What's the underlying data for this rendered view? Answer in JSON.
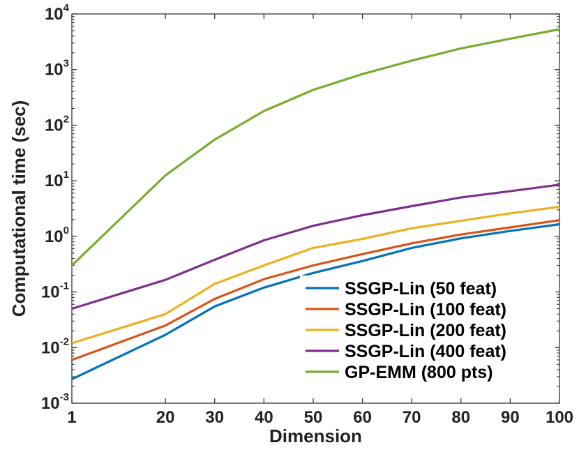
{
  "chart_data": {
    "type": "line",
    "title": "",
    "xlabel": "Dimension",
    "ylabel": "Computational time (sec)",
    "x": [
      1,
      20,
      30,
      40,
      50,
      60,
      70,
      80,
      90,
      100
    ],
    "xlim": [
      1,
      100
    ],
    "xticks": [
      "1",
      "20",
      "30",
      "40",
      "50",
      "60",
      "70",
      "80",
      "90",
      "100"
    ],
    "yscale": "log",
    "ylim": [
      0.001,
      10000
    ],
    "yticks": [
      {
        "base": "10",
        "exp": "-3"
      },
      {
        "base": "10",
        "exp": "-2"
      },
      {
        "base": "10",
        "exp": "-1"
      },
      {
        "base": "10",
        "exp": "0"
      },
      {
        "base": "10",
        "exp": "1"
      },
      {
        "base": "10",
        "exp": "2"
      },
      {
        "base": "10",
        "exp": "3"
      },
      {
        "base": "10",
        "exp": "4"
      }
    ],
    "grid": false,
    "legend_position": "bottom-right",
    "series": [
      {
        "name": "SSGP-Lin (50 feat)",
        "color": "#0072BD",
        "values": [
          0.0027,
          0.017,
          0.055,
          0.12,
          0.22,
          0.36,
          0.62,
          0.92,
          1.25,
          1.65
        ]
      },
      {
        "name": "SSGP-Lin (100 feat)",
        "color": "#D95319",
        "values": [
          0.006,
          0.025,
          0.075,
          0.17,
          0.3,
          0.48,
          0.75,
          1.08,
          1.45,
          1.95
        ]
      },
      {
        "name": "SSGP-Lin (200 feat)",
        "color": "#EDB120",
        "values": [
          0.012,
          0.04,
          0.14,
          0.3,
          0.62,
          0.9,
          1.4,
          1.9,
          2.6,
          3.4
        ]
      },
      {
        "name": "SSGP-Lin (400 feat)",
        "color": "#7E2F8E",
        "values": [
          0.05,
          0.165,
          0.38,
          0.85,
          1.55,
          2.4,
          3.5,
          5.0,
          6.5,
          8.5
        ]
      },
      {
        "name": "GP-EMM (800 pts)",
        "color": "#77AC30",
        "values": [
          0.3,
          12.5,
          55,
          180,
          430,
          830,
          1450,
          2400,
          3600,
          5300
        ]
      }
    ]
  }
}
